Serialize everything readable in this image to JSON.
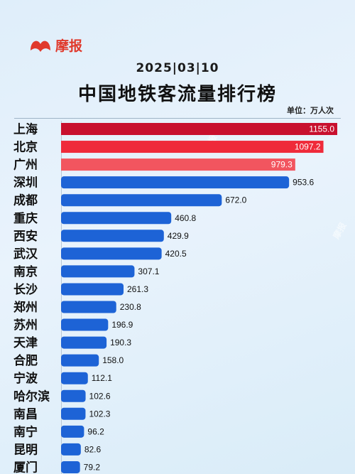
{
  "brand": {
    "name": "摩报",
    "color": "#e0392b"
  },
  "header": {
    "date": "2025|03|10",
    "title": "中国地铁客流量排行榜",
    "unit": "单位：万人次"
  },
  "watermark": "摩报",
  "colors": {
    "top3": [
      "#c8102e",
      "#ef2a3a",
      "#f2555f"
    ],
    "rest": "#1d63d6"
  },
  "chart_data": {
    "type": "bar",
    "orientation": "horizontal",
    "title": "中国地铁客流量排行榜",
    "unit": "单位：万人次",
    "categories": [
      "上海",
      "北京",
      "广州",
      "深圳",
      "成都",
      "重庆",
      "西安",
      "武汉",
      "南京",
      "长沙",
      "郑州",
      "苏州",
      "天津",
      "合肥",
      "宁波",
      "哈尔滨",
      "南昌",
      "南宁",
      "昆明",
      "厦门"
    ],
    "values": [
      1155.0,
      1097.2,
      979.3,
      953.6,
      672.0,
      460.8,
      429.9,
      420.5,
      307.1,
      261.3,
      230.8,
      196.9,
      190.3,
      158.0,
      112.1,
      102.6,
      102.3,
      96.2,
      82.6,
      79.2
    ],
    "labels": [
      "1155.0",
      "1097.2",
      "979.3",
      "953.6",
      "672.0",
      "460.8",
      "429.9",
      "420.5",
      "307.1",
      "261.3",
      "230.8",
      "196.9",
      "190.3",
      "158.0",
      "112.1",
      "102.6",
      "102.3",
      "96.2",
      "82.6",
      "79.2"
    ],
    "xlim": [
      0,
      1155.0
    ],
    "grid": false,
    "legend": "none"
  }
}
